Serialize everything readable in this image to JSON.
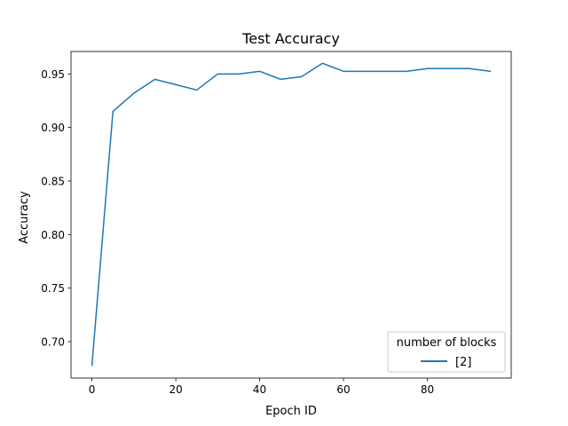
{
  "chart_data": {
    "type": "line",
    "title": "Test Accuracy",
    "xlabel": "Epoch ID",
    "ylabel": "Accuracy",
    "xlim": [
      -5,
      100
    ],
    "ylim": [
      0.666,
      0.971
    ],
    "xticks": [
      0,
      20,
      40,
      60,
      80
    ],
    "xtick_labels": [
      "0",
      "20",
      "40",
      "60",
      "80"
    ],
    "yticks": [
      0.7,
      0.75,
      0.8,
      0.85,
      0.9,
      0.95
    ],
    "ytick_labels": [
      "0.70",
      "0.75",
      "0.80",
      "0.85",
      "0.90",
      "0.95"
    ],
    "grid": false,
    "legend": {
      "title": "number of blocks",
      "placement": "lower-right"
    },
    "series": [
      {
        "name": "[2]",
        "color": "#1f77b4",
        "x": [
          0,
          5,
          10,
          15,
          20,
          25,
          30,
          35,
          40,
          45,
          50,
          55,
          60,
          65,
          70,
          75,
          80,
          85,
          90,
          95
        ],
        "y": [
          0.678,
          0.915,
          0.932,
          0.945,
          0.94,
          0.935,
          0.95,
          0.95,
          0.9525,
          0.945,
          0.9475,
          0.96,
          0.9525,
          0.9525,
          0.9525,
          0.9525,
          0.955,
          0.955,
          0.955,
          0.9525
        ]
      }
    ]
  }
}
